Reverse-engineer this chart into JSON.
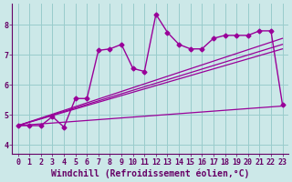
{
  "xlabel": "Windchill (Refroidissement éolien,°C)",
  "bg_color": "#cce8e8",
  "grid_color": "#99cccc",
  "line_color": "#990099",
  "font_color": "#660066",
  "xlim": [
    -0.5,
    23.5
  ],
  "ylim": [
    3.7,
    8.7
  ],
  "xticks": [
    0,
    1,
    2,
    3,
    4,
    5,
    6,
    7,
    8,
    9,
    10,
    11,
    12,
    13,
    14,
    15,
    16,
    17,
    18,
    19,
    20,
    21,
    22,
    23
  ],
  "yticks": [
    4,
    5,
    6,
    7,
    8
  ],
  "main_line_x": [
    0,
    1,
    2,
    3,
    4,
    5,
    6,
    7,
    8,
    9,
    10,
    11,
    12,
    13,
    14,
    15,
    16,
    17,
    18,
    19,
    20,
    21,
    22,
    23
  ],
  "main_line_y": [
    4.65,
    4.65,
    4.65,
    4.95,
    4.6,
    5.55,
    5.55,
    7.15,
    7.2,
    7.35,
    6.55,
    6.45,
    8.35,
    7.75,
    7.35,
    7.2,
    7.2,
    7.55,
    7.65,
    7.65,
    7.65,
    7.8,
    7.8,
    5.35
  ],
  "reg_line1_x": [
    0,
    23
  ],
  "reg_line1_y": [
    4.65,
    7.55
  ],
  "reg_line2_x": [
    0,
    23
  ],
  "reg_line2_y": [
    4.65,
    7.35
  ],
  "reg_line3_x": [
    0,
    23
  ],
  "reg_line3_y": [
    4.65,
    7.2
  ],
  "flat_line_x": [
    0,
    23
  ],
  "flat_line_y": [
    4.65,
    5.3
  ],
  "tick_fontsize": 6,
  "label_fontsize": 7
}
